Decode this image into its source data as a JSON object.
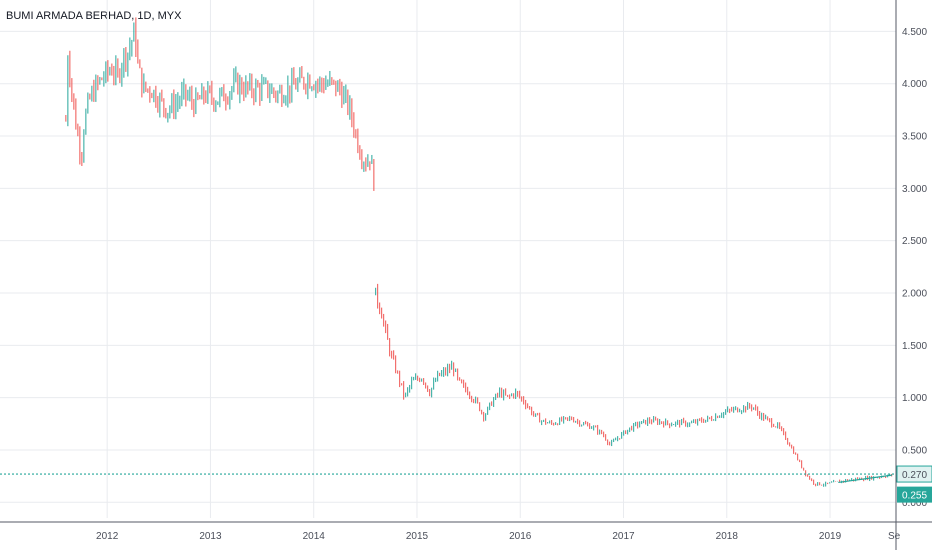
{
  "header": {
    "title": "BUMI ARMADA BERHAD, 1D, MYX"
  },
  "colors": {
    "up": "#26a69a",
    "down": "#ef5350",
    "grid": "#e9ebef",
    "axis": "#555a66",
    "hline": "#26a69a",
    "badge_top": "#26a69a",
    "badge_bottom": "#26a69a"
  },
  "chart_data": {
    "type": "candlestick",
    "title": "BUMI ARMADA BERHAD, 1D, MYX",
    "ylim": [
      -0.15,
      4.8
    ],
    "yticks": [
      "4.500",
      "4.000",
      "3.500",
      "3.000",
      "2.500",
      "2.000",
      "1.500",
      "1.000",
      "0.500",
      "0.000"
    ],
    "ytick_values": [
      4.5,
      4.0,
      3.5,
      3.0,
      2.5,
      2.0,
      1.5,
      1.0,
      0.5,
      0.0
    ],
    "xlim": [
      2011.0,
      2019.62
    ],
    "xticks": [
      "2012",
      "2013",
      "2014",
      "2015",
      "2016",
      "2017",
      "2018",
      "2019",
      "Se"
    ],
    "xtick_values": [
      2012.0,
      2013.0,
      2014.0,
      2015.0,
      2016.0,
      2017.0,
      2018.0,
      2019.0,
      2019.62
    ],
    "grid": true,
    "horizontal_line": {
      "value": 0.27,
      "label": "0.270"
    },
    "last_price": {
      "value": 0.255,
      "label": "0.255"
    },
    "trend_line": {
      "x": [
        2019.08,
        2019.6
      ],
      "y": [
        0.19,
        0.26
      ]
    },
    "price_path": [
      [
        2011.6,
        3.65
      ],
      [
        2011.62,
        4.3
      ],
      [
        2011.66,
        3.9
      ],
      [
        2011.7,
        3.6
      ],
      [
        2011.75,
        3.3
      ],
      [
        2011.78,
        3.65
      ],
      [
        2011.83,
        3.85
      ],
      [
        2011.88,
        3.95
      ],
      [
        2011.95,
        4.05
      ],
      [
        2012.0,
        4.1
      ],
      [
        2012.05,
        4.15
      ],
      [
        2012.1,
        4.05
      ],
      [
        2012.15,
        4.25
      ],
      [
        2012.2,
        4.3
      ],
      [
        2012.27,
        4.5
      ],
      [
        2012.3,
        4.15
      ],
      [
        2012.35,
        3.95
      ],
      [
        2012.42,
        3.95
      ],
      [
        2012.5,
        3.85
      ],
      [
        2012.58,
        3.75
      ],
      [
        2012.65,
        3.8
      ],
      [
        2012.75,
        3.9
      ],
      [
        2012.85,
        3.8
      ],
      [
        2012.95,
        3.9
      ],
      [
        2013.05,
        3.85
      ],
      [
        2013.15,
        3.9
      ],
      [
        2013.25,
        4.0
      ],
      [
        2013.35,
        3.95
      ],
      [
        2013.45,
        3.95
      ],
      [
        2013.55,
        3.95
      ],
      [
        2013.65,
        3.9
      ],
      [
        2013.75,
        3.95
      ],
      [
        2013.85,
        4.0
      ],
      [
        2013.95,
        4.05
      ],
      [
        2014.05,
        4.0
      ],
      [
        2014.15,
        4.0
      ],
      [
        2014.25,
        3.95
      ],
      [
        2014.35,
        3.75
      ],
      [
        2014.4,
        3.55
      ],
      [
        2014.45,
        3.35
      ],
      [
        2014.5,
        3.25
      ],
      [
        2014.55,
        3.3
      ],
      [
        2014.6,
        2.95
      ]
    ],
    "price_path_2": [
      [
        2014.6,
        1.98
      ],
      [
        2014.65,
        1.85
      ],
      [
        2014.7,
        1.6
      ],
      [
        2014.75,
        1.4
      ],
      [
        2014.82,
        1.2
      ],
      [
        2014.88,
        1.0
      ],
      [
        2014.95,
        1.15
      ],
      [
        2015.05,
        1.2
      ],
      [
        2015.12,
        1.05
      ],
      [
        2015.2,
        1.2
      ],
      [
        2015.28,
        1.25
      ],
      [
        2015.35,
        1.3
      ],
      [
        2015.4,
        1.15
      ],
      [
        2015.5,
        1.05
      ],
      [
        2015.58,
        0.95
      ],
      [
        2015.65,
        0.82
      ],
      [
        2015.72,
        0.95
      ],
      [
        2015.8,
        1.05
      ],
      [
        2015.88,
        1.0
      ],
      [
        2015.95,
        1.05
      ],
      [
        2016.05,
        0.95
      ],
      [
        2016.12,
        0.85
      ],
      [
        2016.2,
        0.78
      ],
      [
        2016.3,
        0.75
      ],
      [
        2016.4,
        0.78
      ],
      [
        2016.5,
        0.8
      ],
      [
        2016.6,
        0.75
      ],
      [
        2016.7,
        0.72
      ],
      [
        2016.8,
        0.65
      ],
      [
        2016.87,
        0.55
      ],
      [
        2016.95,
        0.62
      ],
      [
        2017.05,
        0.7
      ],
      [
        2017.15,
        0.75
      ],
      [
        2017.25,
        0.78
      ],
      [
        2017.35,
        0.77
      ],
      [
        2017.45,
        0.75
      ],
      [
        2017.55,
        0.76
      ],
      [
        2017.65,
        0.75
      ],
      [
        2017.75,
        0.78
      ],
      [
        2017.85,
        0.8
      ],
      [
        2017.95,
        0.85
      ],
      [
        2018.05,
        0.88
      ],
      [
        2018.15,
        0.9
      ],
      [
        2018.25,
        0.92
      ],
      [
        2018.3,
        0.85
      ],
      [
        2018.4,
        0.78
      ],
      [
        2018.5,
        0.72
      ],
      [
        2018.58,
        0.6
      ],
      [
        2018.65,
        0.48
      ],
      [
        2018.72,
        0.35
      ],
      [
        2018.78,
        0.25
      ],
      [
        2018.85,
        0.18
      ],
      [
        2018.95,
        0.17
      ],
      [
        2019.05,
        0.19
      ],
      [
        2019.15,
        0.21
      ],
      [
        2019.25,
        0.22
      ],
      [
        2019.35,
        0.23
      ],
      [
        2019.45,
        0.24
      ],
      [
        2019.55,
        0.255
      ],
      [
        2019.6,
        0.255
      ]
    ]
  }
}
